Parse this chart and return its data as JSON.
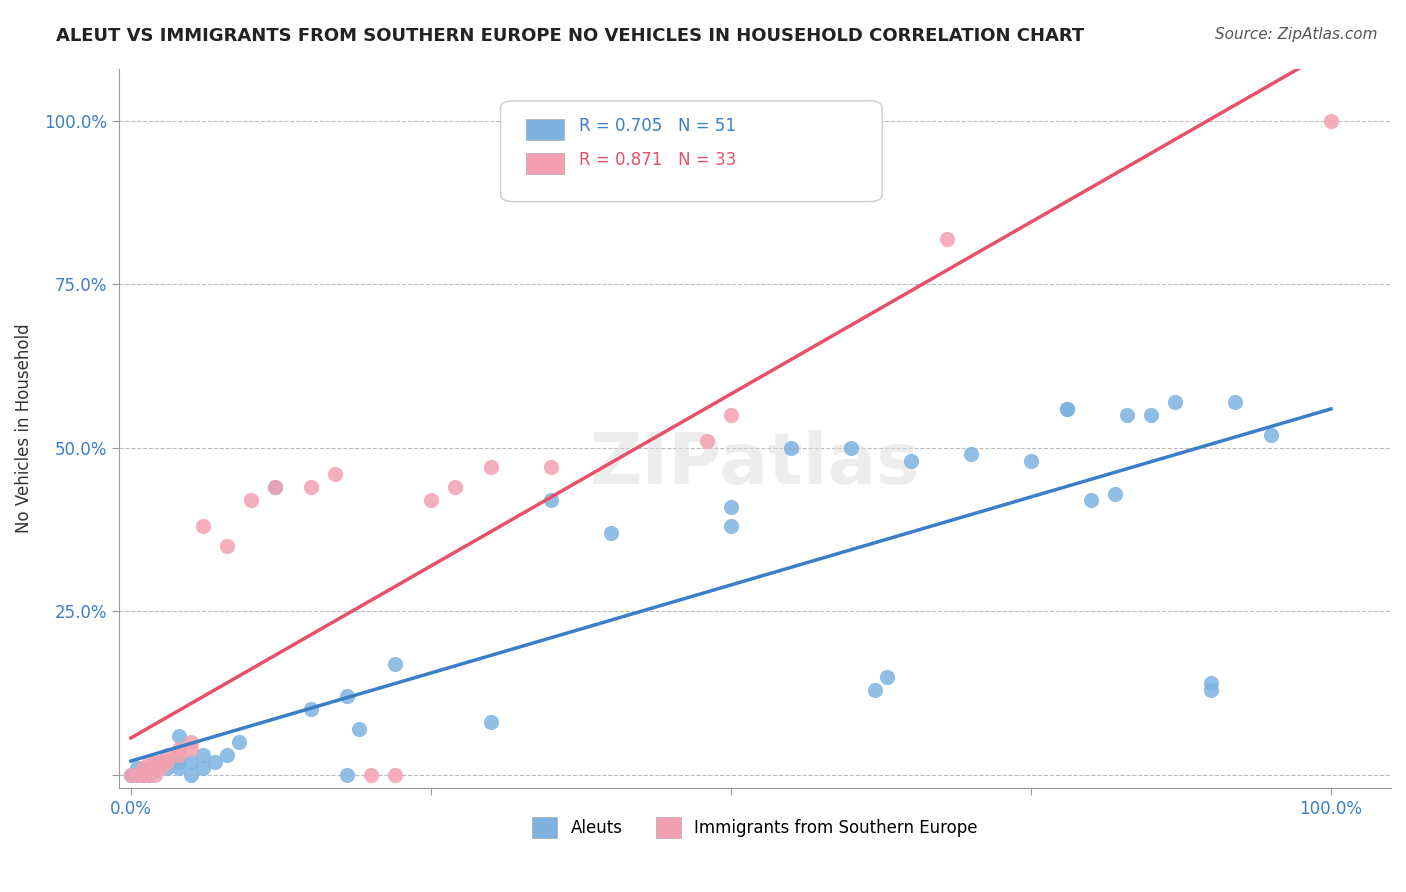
{
  "title": "ALEUT VS IMMIGRANTS FROM SOUTHERN EUROPE NO VEHICLES IN HOUSEHOLD CORRELATION CHART",
  "source": "Source: ZipAtlas.com",
  "ylabel_label": "No Vehicles in Household",
  "legend_label1": "Aleuts",
  "legend_label2": "Immigrants from Southern Europe",
  "r1": "0.705",
  "n1": "51",
  "r2": "0.871",
  "n2": "33",
  "color_blue": "#7EB3E0",
  "color_pink": "#F4A0B0",
  "color_blue_line": "#3B7EC8",
  "color_pink_line": "#E8506A",
  "blue_points": [
    [
      0.0,
      0.0
    ],
    [
      0.005,
      0.0
    ],
    [
      0.005,
      0.01
    ],
    [
      0.01,
      0.0
    ],
    [
      0.01,
      0.005
    ],
    [
      0.01,
      0.01
    ],
    [
      0.015,
      0.0
    ],
    [
      0.02,
      0.005
    ],
    [
      0.02,
      0.01
    ],
    [
      0.025,
      0.02
    ],
    [
      0.03,
      0.01
    ],
    [
      0.03,
      0.02
    ],
    [
      0.04,
      0.01
    ],
    [
      0.04,
      0.02
    ],
    [
      0.04,
      0.06
    ],
    [
      0.05,
      0.0
    ],
    [
      0.05,
      0.02
    ],
    [
      0.06,
      0.01
    ],
    [
      0.06,
      0.03
    ],
    [
      0.07,
      0.02
    ],
    [
      0.08,
      0.03
    ],
    [
      0.09,
      0.05
    ],
    [
      0.12,
      0.44
    ],
    [
      0.15,
      0.1
    ],
    [
      0.18,
      0.0
    ],
    [
      0.18,
      0.12
    ],
    [
      0.19,
      0.07
    ],
    [
      0.22,
      0.17
    ],
    [
      0.3,
      0.08
    ],
    [
      0.35,
      0.42
    ],
    [
      0.4,
      0.37
    ],
    [
      0.5,
      0.38
    ],
    [
      0.5,
      0.41
    ],
    [
      0.55,
      0.5
    ],
    [
      0.6,
      0.5
    ],
    [
      0.62,
      0.13
    ],
    [
      0.63,
      0.15
    ],
    [
      0.65,
      0.48
    ],
    [
      0.7,
      0.49
    ],
    [
      0.75,
      0.48
    ],
    [
      0.78,
      0.56
    ],
    [
      0.78,
      0.56
    ],
    [
      0.8,
      0.42
    ],
    [
      0.82,
      0.43
    ],
    [
      0.83,
      0.55
    ],
    [
      0.85,
      0.55
    ],
    [
      0.87,
      0.57
    ],
    [
      0.9,
      0.13
    ],
    [
      0.9,
      0.14
    ],
    [
      0.92,
      0.57
    ],
    [
      0.95,
      0.52
    ]
  ],
  "pink_points": [
    [
      0.0,
      0.0
    ],
    [
      0.005,
      0.0
    ],
    [
      0.01,
      0.0
    ],
    [
      0.01,
      0.01
    ],
    [
      0.015,
      0.0
    ],
    [
      0.015,
      0.02
    ],
    [
      0.02,
      0.0
    ],
    [
      0.02,
      0.01
    ],
    [
      0.02,
      0.02
    ],
    [
      0.025,
      0.01
    ],
    [
      0.025,
      0.02
    ],
    [
      0.03,
      0.02
    ],
    [
      0.03,
      0.03
    ],
    [
      0.04,
      0.03
    ],
    [
      0.04,
      0.04
    ],
    [
      0.05,
      0.04
    ],
    [
      0.05,
      0.05
    ],
    [
      0.06,
      0.38
    ],
    [
      0.08,
      0.35
    ],
    [
      0.1,
      0.42
    ],
    [
      0.12,
      0.44
    ],
    [
      0.15,
      0.44
    ],
    [
      0.17,
      0.46
    ],
    [
      0.2,
      0.0
    ],
    [
      0.22,
      0.0
    ],
    [
      0.25,
      0.42
    ],
    [
      0.27,
      0.44
    ],
    [
      0.3,
      0.47
    ],
    [
      0.35,
      0.47
    ],
    [
      0.48,
      0.51
    ],
    [
      0.5,
      0.55
    ],
    [
      0.68,
      0.82
    ],
    [
      1.0,
      1.0
    ]
  ]
}
